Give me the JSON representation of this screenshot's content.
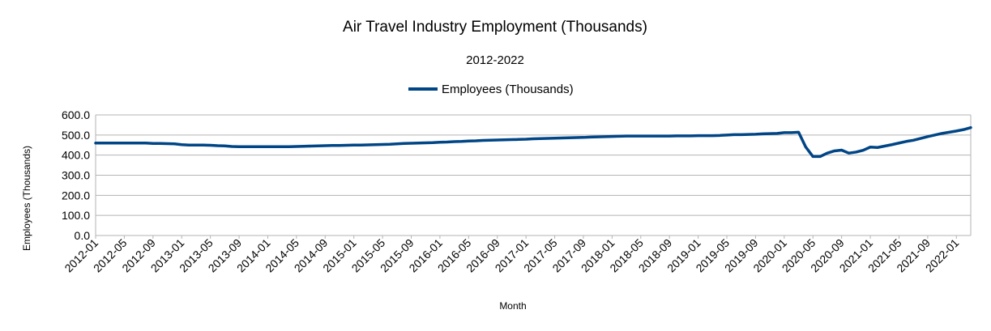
{
  "chart_data": {
    "type": "line",
    "title": "Air Travel Industry Employment (Thousands)",
    "subtitle": "2012-2022",
    "xlabel": "Month",
    "ylabel": "Employees (Thousands)",
    "ylim": [
      0,
      600
    ],
    "y_ticks": [
      "0.0",
      "100.0",
      "200.0",
      "300.0",
      "400.0",
      "500.0",
      "600.0"
    ],
    "grid": true,
    "legend_position": "top",
    "x_tick_labels": [
      "2012-01",
      "2012-05",
      "2012-09",
      "2013-01",
      "2013-05",
      "2013-09",
      "2014-01",
      "2014-05",
      "2014-09",
      "2015-01",
      "2015-05",
      "2015-09",
      "2016-01",
      "2016-05",
      "2016-09",
      "2017-01",
      "2017-05",
      "2017-09",
      "2018-01",
      "2018-05",
      "2018-09",
      "2019-01",
      "2019-05",
      "2019-09",
      "2020-01",
      "2020-05",
      "2020-09",
      "2021-01",
      "2021-05",
      "2021-09",
      "2022-01"
    ],
    "x": [
      "2012-01",
      "2012-02",
      "2012-03",
      "2012-04",
      "2012-05",
      "2012-06",
      "2012-07",
      "2012-08",
      "2012-09",
      "2012-10",
      "2012-11",
      "2012-12",
      "2013-01",
      "2013-02",
      "2013-03",
      "2013-04",
      "2013-05",
      "2013-06",
      "2013-07",
      "2013-08",
      "2013-09",
      "2013-10",
      "2013-11",
      "2013-12",
      "2014-01",
      "2014-02",
      "2014-03",
      "2014-04",
      "2014-05",
      "2014-06",
      "2014-07",
      "2014-08",
      "2014-09",
      "2014-10",
      "2014-11",
      "2014-12",
      "2015-01",
      "2015-02",
      "2015-03",
      "2015-04",
      "2015-05",
      "2015-06",
      "2015-07",
      "2015-08",
      "2015-09",
      "2015-10",
      "2015-11",
      "2015-12",
      "2016-01",
      "2016-02",
      "2016-03",
      "2016-04",
      "2016-05",
      "2016-06",
      "2016-07",
      "2016-08",
      "2016-09",
      "2016-10",
      "2016-11",
      "2016-12",
      "2017-01",
      "2017-02",
      "2017-03",
      "2017-04",
      "2017-05",
      "2017-06",
      "2017-07",
      "2017-08",
      "2017-09",
      "2017-10",
      "2017-11",
      "2017-12",
      "2018-01",
      "2018-02",
      "2018-03",
      "2018-04",
      "2018-05",
      "2018-06",
      "2018-07",
      "2018-08",
      "2018-09",
      "2018-10",
      "2018-11",
      "2018-12",
      "2019-01",
      "2019-02",
      "2019-03",
      "2019-04",
      "2019-05",
      "2019-06",
      "2019-07",
      "2019-08",
      "2019-09",
      "2019-10",
      "2019-11",
      "2019-12",
      "2020-01",
      "2020-02",
      "2020-03",
      "2020-04",
      "2020-05",
      "2020-06",
      "2020-07",
      "2020-08",
      "2020-09",
      "2020-10",
      "2020-11",
      "2020-12",
      "2021-01",
      "2021-02",
      "2021-03",
      "2021-04",
      "2021-05",
      "2021-06",
      "2021-07",
      "2021-08",
      "2021-09",
      "2021-10",
      "2021-11",
      "2021-12",
      "2022-01",
      "2022-02",
      "2022-03"
    ],
    "series": [
      {
        "name": "Employees (Thousands)",
        "color": "#004586",
        "values": [
          460,
          460,
          460,
          460,
          460,
          460,
          460,
          460,
          458,
          458,
          457,
          456,
          452,
          450,
          450,
          450,
          449,
          447,
          446,
          443,
          442,
          442,
          442,
          442,
          442,
          442,
          442,
          442,
          443,
          444,
          445,
          446,
          447,
          448,
          448,
          449,
          450,
          450,
          451,
          452,
          453,
          454,
          456,
          458,
          459,
          460,
          461,
          462,
          464,
          465,
          467,
          468,
          470,
          471,
          473,
          474,
          475,
          476,
          477,
          478,
          479,
          481,
          482,
          483,
          484,
          485,
          486,
          487,
          488,
          490,
          491,
          492,
          493,
          494,
          495,
          495,
          495,
          495,
          495,
          495,
          495,
          496,
          496,
          496,
          497,
          497,
          497,
          498,
          500,
          502,
          502,
          503,
          504,
          506,
          507,
          508,
          512,
          512,
          514,
          440,
          393,
          393,
          410,
          421,
          425,
          410,
          415,
          424,
          440,
          438,
          445,
          452,
          460,
          468,
          474,
          483,
          492,
          500,
          508,
          514,
          520,
          527,
          537
        ]
      }
    ]
  }
}
